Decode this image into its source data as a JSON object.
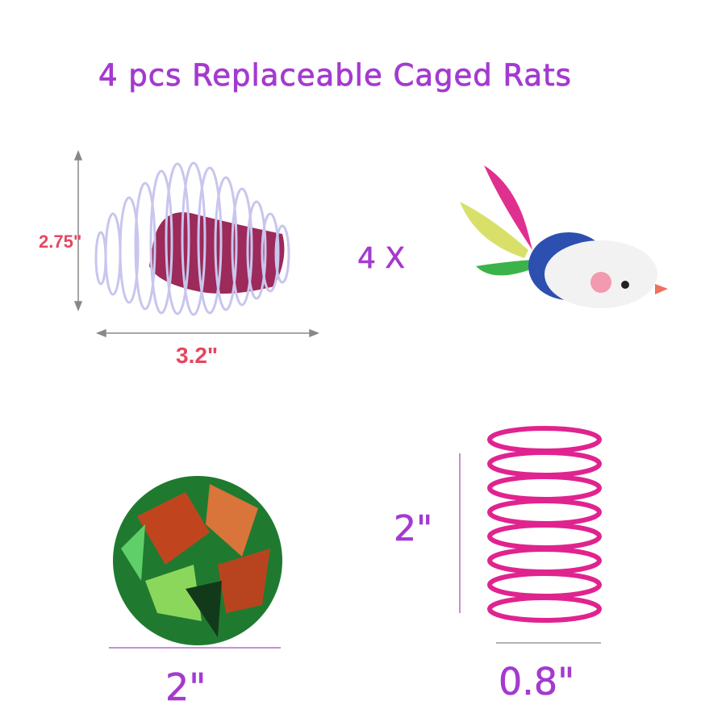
{
  "title": "4 pcs Replaceable Caged Rats",
  "caged_rat": {
    "height_label": "2.75\"",
    "width_label": "3.2\""
  },
  "mouse": {
    "quantity_label": "4 X"
  },
  "crinkle_ball": {
    "width_label": "2\""
  },
  "spring": {
    "height_label": "2\"",
    "width_label": "0.8\""
  },
  "colors": {
    "title": "#a43ad0",
    "dimension_red": "#e5475f",
    "spring_pink": "#e0238f",
    "cage_wire": "#c8c6ee"
  }
}
